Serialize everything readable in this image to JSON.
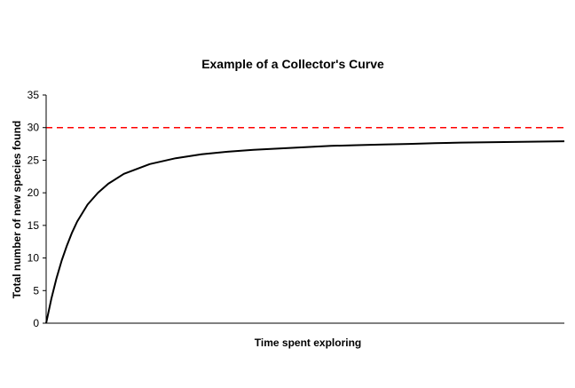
{
  "chart_data": {
    "type": "line",
    "title": "Example of a Collector's Curve",
    "xlabel": "Time spent exploring",
    "ylabel": "Total number of new species found",
    "ylim": [
      0,
      35
    ],
    "yticks": [
      "0",
      "5",
      "10",
      "15",
      "20",
      "25",
      "30",
      "35"
    ],
    "xticks": [],
    "grid": false,
    "legend": "none",
    "x_range": [
      0,
      100
    ],
    "series": [
      {
        "color": "#000000",
        "style": "solid",
        "x": [
          0,
          1,
          2,
          3,
          4,
          5,
          6,
          8,
          10,
          12,
          15,
          20,
          25,
          30,
          35,
          40,
          45,
          50,
          55,
          60,
          65,
          70,
          75,
          80,
          85,
          90,
          95,
          100
        ],
        "values": [
          0,
          3.7,
          6.9,
          9.6,
          11.9,
          13.9,
          15.6,
          18.2,
          20.0,
          21.4,
          22.9,
          24.4,
          25.3,
          25.9,
          26.3,
          26.6,
          26.8,
          27.0,
          27.2,
          27.3,
          27.4,
          27.5,
          27.6,
          27.7,
          27.75,
          27.8,
          27.85,
          27.9
        ]
      }
    ],
    "reference_line": {
      "y": 30,
      "color": "#ff0000",
      "style": "dashed"
    }
  }
}
